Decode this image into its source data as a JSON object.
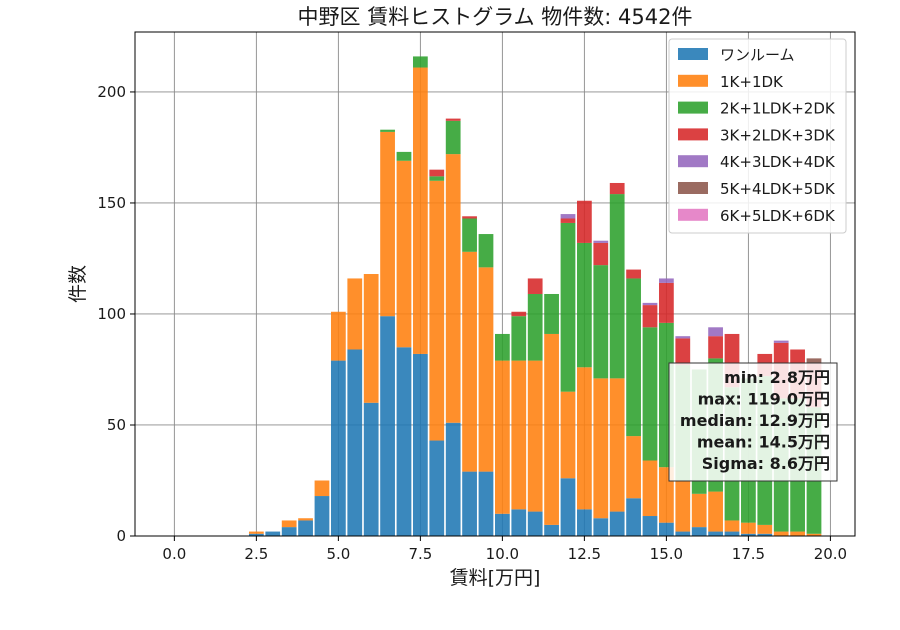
{
  "chart_data": {
    "type": "bar",
    "stacked": true,
    "title": "中野区 賃料ヒストグラム 物件数: 4542件",
    "xlabel": "賃料[万円]",
    "ylabel": "件数",
    "xlim": [
      -1.2,
      20.75
    ],
    "ylim": [
      0,
      227
    ],
    "x_ticks": [
      0.0,
      2.5,
      5.0,
      7.5,
      10.0,
      12.5,
      15.0,
      17.5,
      20.0
    ],
    "x_tick_labels": [
      "0.0",
      "2.5",
      "5.0",
      "7.5",
      "10.0",
      "12.5",
      "15.0",
      "17.5",
      "20.0"
    ],
    "y_ticks": [
      0,
      50,
      100,
      150,
      200
    ],
    "y_tick_labels": [
      "0",
      "50",
      "100",
      "150",
      "200"
    ],
    "grid": true,
    "legend_position": "top-right",
    "bin_width": 0.5,
    "bin_starts": [
      2.25,
      2.75,
      3.25,
      3.75,
      4.25,
      4.75,
      5.25,
      5.75,
      6.25,
      6.75,
      7.25,
      7.75,
      8.25,
      8.75,
      9.25,
      9.75,
      10.25,
      10.75,
      11.25,
      11.75,
      12.25,
      12.75,
      13.25,
      13.75,
      14.25,
      14.75,
      15.25,
      15.75,
      16.25,
      16.75,
      17.25,
      17.75,
      18.25,
      18.75,
      19.25
    ],
    "series": [
      {
        "name": "ワンルーム",
        "color": "#1f77b4",
        "values": [
          1,
          2,
          4,
          7,
          18,
          79,
          84,
          60,
          99,
          85,
          82,
          43,
          51,
          29,
          29,
          10,
          12,
          11,
          5,
          26,
          12,
          8,
          11,
          17,
          9,
          6,
          2,
          4,
          2,
          2,
          1,
          1,
          0,
          0,
          0
        ]
      },
      {
        "name": "1K+1DK",
        "color": "#ff7f0e",
        "values": [
          1,
          0,
          3,
          1,
          7,
          22,
          32,
          58,
          83,
          84,
          129,
          117,
          121,
          99,
          92,
          69,
          67,
          68,
          86,
          39,
          64,
          63,
          60,
          28,
          25,
          25,
          23,
          15,
          18,
          5,
          5,
          4,
          2,
          2,
          1
        ]
      },
      {
        "name": "2K+1LDK+2DK",
        "color": "#2ca02c",
        "values": [
          0,
          0,
          0,
          0,
          0,
          0,
          0,
          0,
          1,
          4,
          5,
          2,
          15,
          15,
          15,
          12,
          20,
          30,
          18,
          76,
          56,
          51,
          83,
          71,
          60,
          65,
          52,
          56,
          60,
          60,
          65,
          67,
          60,
          60,
          57
        ]
      },
      {
        "name": "3K+2LDK+3DK",
        "color": "#d62728",
        "values": [
          0,
          0,
          0,
          0,
          0,
          0,
          0,
          0,
          0,
          0,
          0,
          3,
          1,
          1,
          0,
          0,
          2,
          7,
          0,
          2,
          19,
          10,
          5,
          4,
          10,
          18,
          12,
          0,
          10,
          24,
          0,
          10,
          25,
          22,
          20
        ]
      },
      {
        "name": "4K+3LDK+4DK",
        "color": "#9467bd",
        "values": [
          0,
          0,
          0,
          0,
          0,
          0,
          0,
          0,
          0,
          0,
          0,
          0,
          0,
          0,
          0,
          0,
          0,
          0,
          0,
          2,
          0,
          1,
          0,
          0,
          1,
          2,
          1,
          0,
          4,
          0,
          0,
          0,
          1,
          0,
          0
        ]
      },
      {
        "name": "5K+4LDK+5DK",
        "color": "#8c564b",
        "values": [
          0,
          0,
          0,
          0,
          0,
          0,
          0,
          0,
          0,
          0,
          0,
          0,
          0,
          0,
          0,
          0,
          0,
          0,
          0,
          0,
          0,
          0,
          0,
          0,
          0,
          0,
          0,
          0,
          0,
          0,
          0,
          0,
          0,
          0,
          2
        ]
      },
      {
        "name": "6K+5LDK+6DK",
        "color": "#e377c2",
        "values": [
          0,
          0,
          0,
          0,
          0,
          0,
          0,
          0,
          0,
          0,
          0,
          0,
          0,
          0,
          0,
          0,
          0,
          0,
          0,
          0,
          0,
          0,
          0,
          0,
          0,
          0,
          0,
          0,
          0,
          0,
          0,
          0,
          0,
          0,
          0
        ]
      }
    ],
    "stats_box": [
      "min: 2.8万円",
      "max: 119.0万円",
      "median: 12.9万円",
      "mean: 14.5万円",
      "Sigma: 8.6万円"
    ]
  }
}
